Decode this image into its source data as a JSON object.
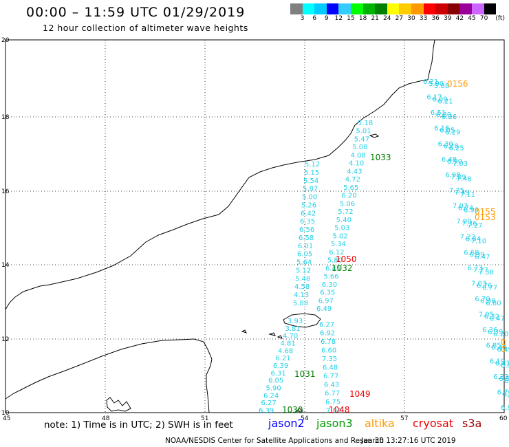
{
  "header": {
    "title": "00:00 – 11:59 UTC 01/29/2019",
    "subtitle": "12 hour collection of altimeter wave heights"
  },
  "colorbar": {
    "unit": "(ft)",
    "labels": [
      "3",
      "6",
      "9",
      "12",
      "15",
      "18",
      "21",
      "24",
      "27",
      "30",
      "33",
      "36",
      "39",
      "42",
      "45",
      "70"
    ],
    "colors": [
      "#808080",
      "#00ffff",
      "#00ccff",
      "#0000ff",
      "#33ccff",
      "#00ff00",
      "#00b300",
      "#007f00",
      "#ffff00",
      "#ffcc00",
      "#ff9900",
      "#ff0000",
      "#cc0000",
      "#880000",
      "#990099",
      "#cc66ff",
      "#000000"
    ]
  },
  "axes": {
    "lon_ticks": [
      "45",
      "48",
      "51",
      "54",
      "57",
      "60"
    ],
    "lat_ticks": [
      "10",
      "12",
      "14",
      "16",
      "18",
      "20"
    ]
  },
  "tracks": {
    "cyan_main": {
      "values": [
        "6.21",
        "5.90",
        "5.88",
        "6.17",
        "6.09",
        "6.21",
        "6.51",
        "6.80",
        "6.26",
        "6.16",
        "6.05",
        "6.29",
        "6.30",
        "6.28",
        "6.25",
        "6.48",
        "6.90",
        "7.03",
        "6.98",
        "7.09",
        "7.48",
        "7.25",
        "7.49",
        "7.11",
        "7.02",
        "6.74",
        "6.99",
        "7.00",
        "7.36",
        "7.27",
        "7.22",
        "6.84",
        "7.10",
        "6.68",
        "6.99",
        "6.47",
        "6.73",
        "7.27",
        "7.38",
        "7.03",
        "6.76",
        "6.77",
        "6.70",
        "6.98",
        "6.80",
        "7.05",
        "6.32",
        "6.47",
        "6.36",
        "6.39",
        "6.20",
        "6.85",
        "6.44",
        "6.49",
        "6.19",
        "6.41",
        "6.35",
        "6.23",
        "6.55",
        "6.65",
        "6.70",
        "6.82",
        "6.77",
        "6.95"
      ]
    },
    "cyan_left": {
      "values": [
        "5.12",
        "5.15",
        "5.54",
        "5.87",
        "5.00",
        "5.26",
        "6.42",
        "6.35",
        "6.56",
        "6.58",
        "6.01",
        "6.05",
        "5.64",
        "5.12",
        "5.48",
        "4.58",
        "4.13",
        "5.88"
      ]
    },
    "cyan_mid": {
      "values": [
        "5.18",
        "5.01",
        "5.47",
        "5.08",
        "4.08",
        "4.10",
        "4.43",
        "4.72",
        "5.65",
        "6.20",
        "5.06",
        "5.72",
        "5.40",
        "5.03",
        "5.02",
        "5.34",
        "6.12",
        "5.80",
        "6.45",
        "5.66",
        "6.30",
        "6.35",
        "6.97",
        "6.49"
      ]
    },
    "cyan_low_left": {
      "values": [
        "3.93",
        "3.81",
        "4.70",
        "4.81",
        "4.68",
        "6.21",
        "6.39",
        "6.31",
        "6.05",
        "5.90",
        "6.24",
        "6.27",
        "6.39"
      ]
    },
    "cyan_low_mid": {
      "values": [
        "6.27",
        "6.92",
        "6.78",
        "6.60",
        "7.35",
        "6.48",
        "6.77",
        "6.43",
        "6.77",
        "6.75",
        "7.04"
      ]
    }
  },
  "time_labels": [
    {
      "text": "0156",
      "color": "#ff9900"
    },
    {
      "text": "0155",
      "color": "#ff9900"
    },
    {
      "text": "0153",
      "color": "#ff9900"
    },
    {
      "text": "0",
      "color": "#ff9900"
    },
    {
      "text": "0",
      "color": "#ff9900"
    },
    {
      "text": "1033",
      "color": "#007f00"
    },
    {
      "text": "1050",
      "color": "#ee0000"
    },
    {
      "text": "1032",
      "color": "#007f00"
    },
    {
      "text": "1031",
      "color": "#007f00"
    },
    {
      "text": "1049",
      "color": "#ee0000"
    },
    {
      "text": "1030",
      "color": "#007f00"
    },
    {
      "text": "1048",
      "color": "#ee0000"
    }
  ],
  "legend": {
    "note": "note: 1) Time is in UTC; 2) SWH is in feet",
    "satellites": [
      {
        "name": "jason2",
        "color": "#0000ff"
      },
      {
        "name": "jason3",
        "color": "#009900"
      },
      {
        "name": "altika",
        "color": "#ff9900"
      },
      {
        "name": "cryosat",
        "color": "#ee0000"
      },
      {
        "name": "s3a",
        "color": "#990000"
      }
    ]
  },
  "footer": {
    "credit": "NOAA/NESDIS Center for Satellite Applications and Research",
    "timestamp": "Jan 30 13:27:16 UTC 2019"
  }
}
